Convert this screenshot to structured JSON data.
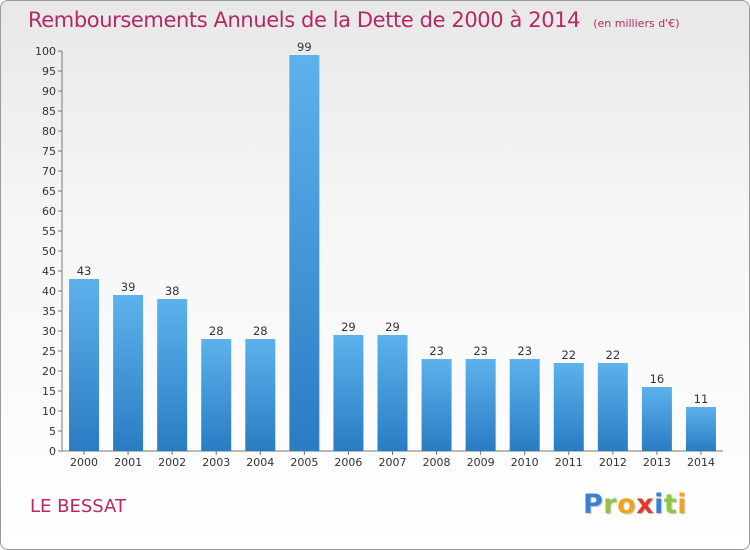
{
  "chart_data": {
    "type": "bar",
    "title": "Remboursements Annuels de la Dette de 2000 à 2014",
    "subtitle": "(en milliers d'€)",
    "categories": [
      "2000",
      "2001",
      "2002",
      "2003",
      "2004",
      "2005",
      "2006",
      "2007",
      "2008",
      "2009",
      "2010",
      "2011",
      "2012",
      "2013",
      "2014"
    ],
    "values": [
      43,
      39,
      38,
      28,
      28,
      99,
      29,
      29,
      23,
      23,
      23,
      22,
      22,
      16,
      11
    ],
    "ylim": [
      0,
      100
    ],
    "ytick_step": 5,
    "grid": false,
    "bar_color": "#3d96dd",
    "data_labels": true
  },
  "footer": {
    "commune": "LE BESSAT"
  },
  "logo": {
    "letters": [
      {
        "ch": "P",
        "color": "#3a7fd0"
      },
      {
        "ch": "r",
        "color": "#8dc63f"
      },
      {
        "ch": "o",
        "color": "#f2a21b"
      },
      {
        "ch": "x",
        "color": "#e03a2f"
      },
      {
        "ch": "i",
        "color": "#3a7fd0"
      },
      {
        "ch": "t",
        "color": "#8dc63f"
      },
      {
        "ch": "i",
        "color": "#f2a21b"
      }
    ]
  }
}
